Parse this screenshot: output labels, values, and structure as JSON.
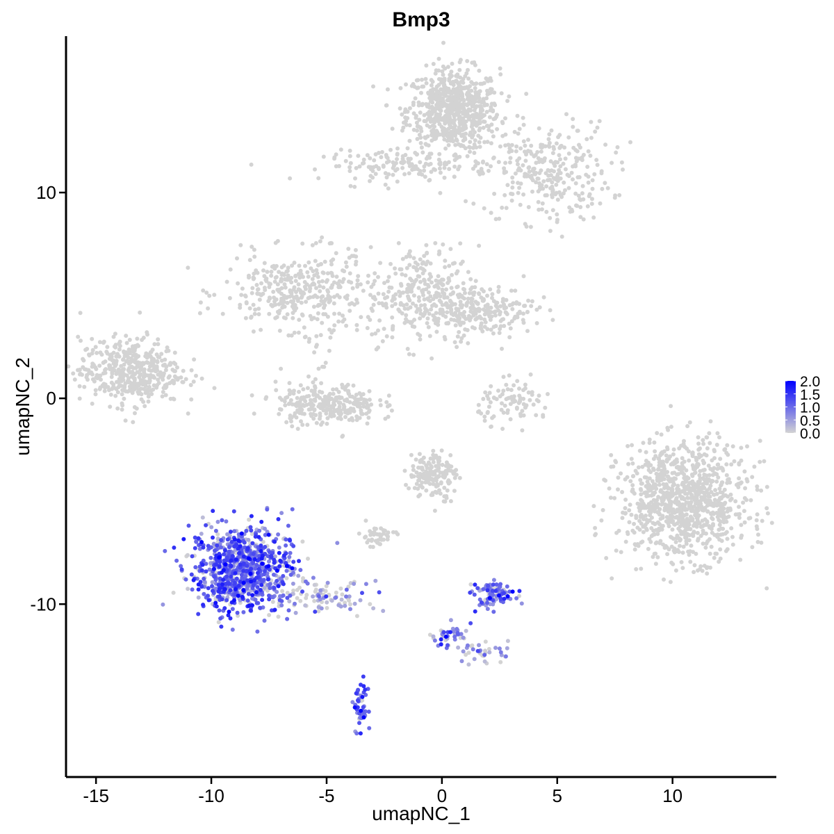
{
  "chart_data": {
    "type": "scatter",
    "title": "Bmp3",
    "xlabel": "umapNC_1",
    "ylabel": "umapNC_2",
    "xlim": [
      -16.3,
      14.5
    ],
    "ylim": [
      -18.4,
      17.6
    ],
    "x_ticks": [
      -15,
      -10,
      -5,
      0,
      5,
      10
    ],
    "x_tick_labels": [
      "-15",
      "-10",
      "-5",
      "0",
      "5",
      "10"
    ],
    "y_ticks": [
      -10,
      0,
      10
    ],
    "y_tick_labels": [
      "-10",
      "0",
      "10"
    ],
    "grid": false,
    "color_scale": {
      "low": "#d3d3d3",
      "high": "#0000ff",
      "min": 0.0,
      "max": 2.0,
      "ticks": [
        0.0,
        0.5,
        1.0,
        1.5,
        2.0
      ],
      "tick_labels": [
        "0.0",
        "0.5",
        "1.0",
        "1.5",
        "2.0"
      ],
      "position": "right"
    },
    "point_color_default": "#d3d3d3",
    "clusters": [
      {
        "cx": 0.5,
        "cy": 14.0,
        "sx": 1.0,
        "sy": 1.0,
        "n": 700,
        "expr": 0
      },
      {
        "cx": 4.5,
        "cy": 11.0,
        "sx": 1.4,
        "sy": 1.2,
        "n": 300,
        "expr": 0
      },
      {
        "cx": -1.5,
        "cy": 11.3,
        "sx": 1.8,
        "sy": 0.35,
        "n": 140,
        "expr": 0
      },
      {
        "cx": -6.5,
        "cy": 5.2,
        "sx": 1.5,
        "sy": 0.9,
        "n": 300,
        "expr": 0
      },
      {
        "cx": -5.2,
        "cy": 4.5,
        "sx": 0.7,
        "sy": 2.0,
        "n": 70,
        "expr": 0
      },
      {
        "cx": -0.8,
        "cy": 5.0,
        "sx": 1.2,
        "sy": 1.2,
        "n": 320,
        "expr": 0
      },
      {
        "cx": 1.8,
        "cy": 4.3,
        "sx": 1.1,
        "sy": 0.6,
        "n": 200,
        "expr": 0
      },
      {
        "cx": -13.5,
        "cy": 1.3,
        "sx": 1.1,
        "sy": 0.8,
        "n": 450,
        "expr": 0
      },
      {
        "cx": -5.0,
        "cy": -0.3,
        "sx": 1.1,
        "sy": 0.5,
        "n": 280,
        "expr": 0
      },
      {
        "cx": 3.2,
        "cy": -0.2,
        "sx": 0.8,
        "sy": 0.5,
        "n": 90,
        "expr": 0
      },
      {
        "cx": 10.5,
        "cy": -5.0,
        "sx": 1.4,
        "sy": 1.4,
        "n": 1000,
        "expr": 0
      },
      {
        "cx": -0.4,
        "cy": -3.7,
        "sx": 0.5,
        "sy": 0.6,
        "n": 160,
        "expr": 0
      },
      {
        "cx": -2.8,
        "cy": -6.7,
        "sx": 0.4,
        "sy": 0.25,
        "n": 45,
        "expr": 0
      },
      {
        "cx": -8.7,
        "cy": -8.3,
        "sx": 1.1,
        "sy": 1.0,
        "n": 900,
        "expr": 1.0
      },
      {
        "cx": -5.0,
        "cy": -9.6,
        "sx": 0.9,
        "sy": 0.35,
        "n": 90,
        "expr": 0.4
      },
      {
        "cx": 2.3,
        "cy": -9.5,
        "sx": 0.45,
        "sy": 0.3,
        "n": 100,
        "expr": 0.9
      },
      {
        "cx": -3.5,
        "cy": -14.9,
        "sx": 0.15,
        "sy": 0.5,
        "n": 50,
        "expr": 1.0
      },
      {
        "cx": 0.3,
        "cy": -11.6,
        "sx": 0.5,
        "sy": 0.3,
        "n": 45,
        "expr": 0.8
      },
      {
        "cx": 1.8,
        "cy": -12.4,
        "sx": 0.55,
        "sy": 0.25,
        "n": 35,
        "expr": 0.3
      }
    ]
  }
}
